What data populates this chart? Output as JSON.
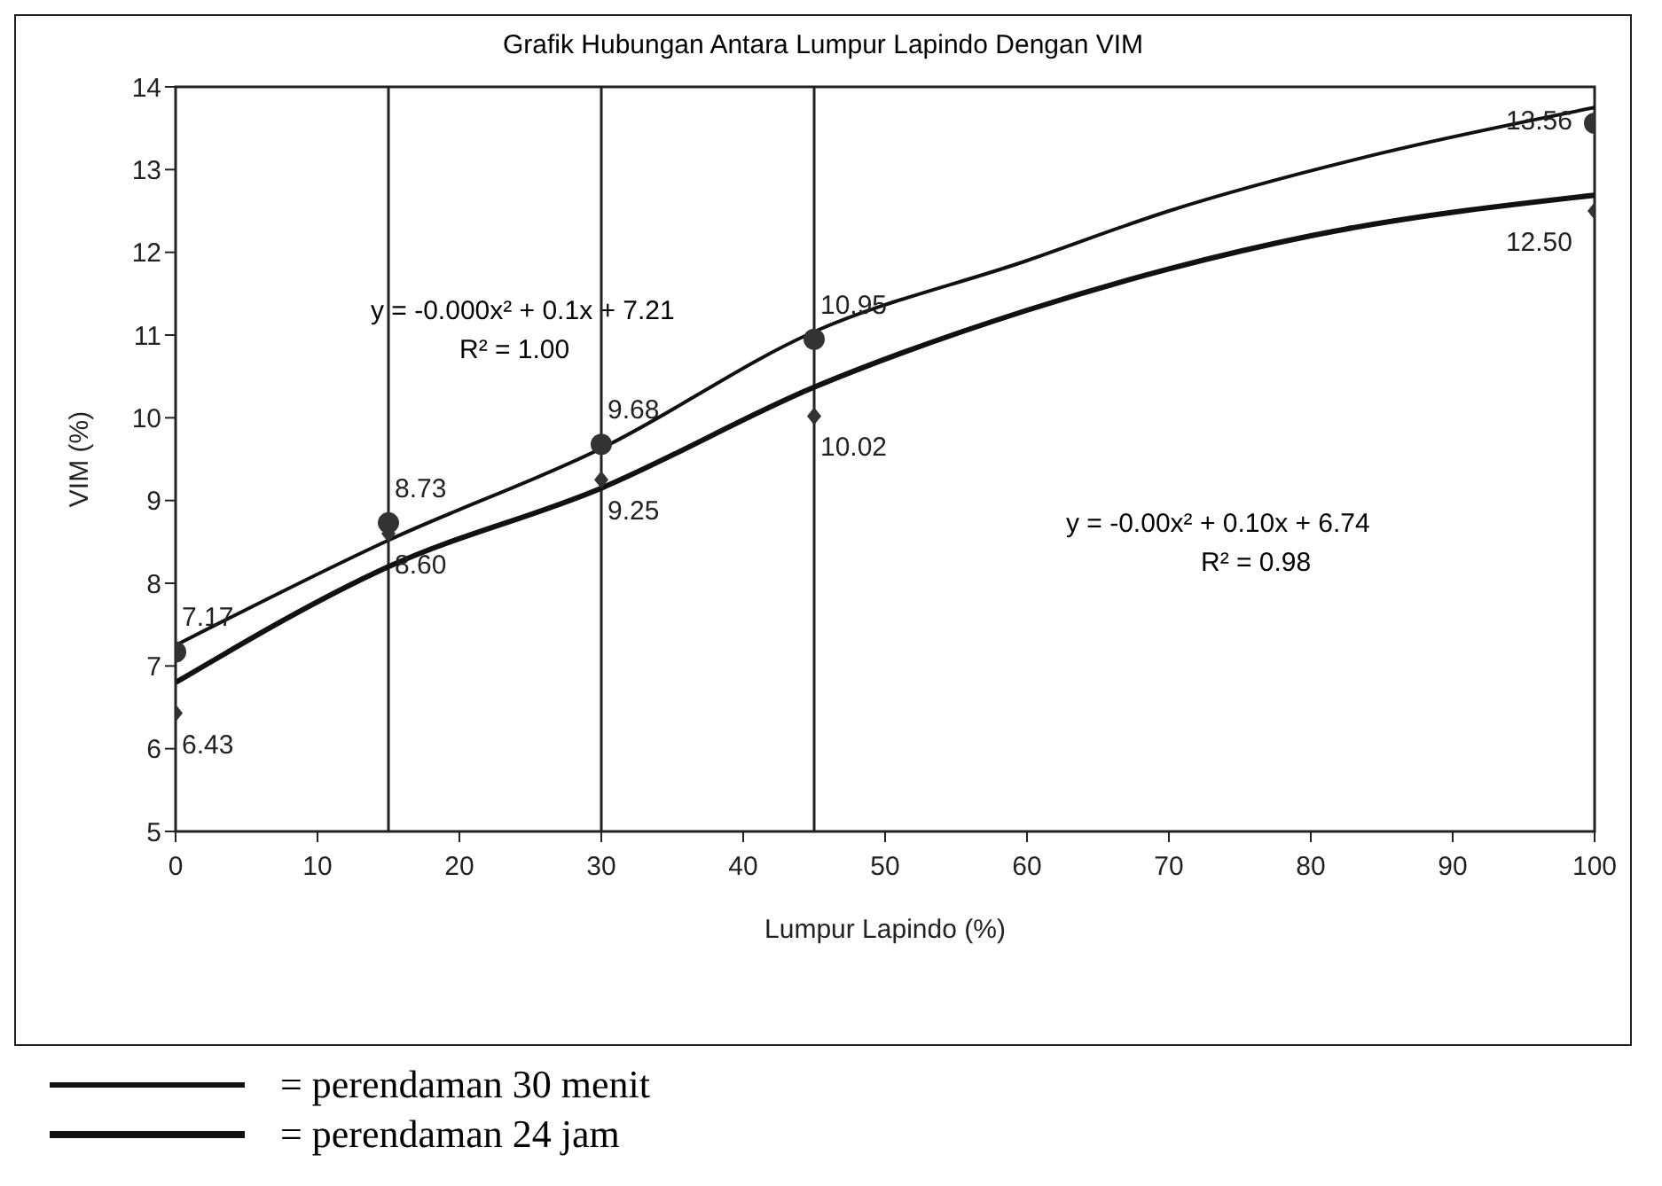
{
  "chart_data": {
    "type": "scatter",
    "title": "Grafik Hubungan  Antara Lumpur Lapindo Dengan VIM",
    "xlabel": "Lumpur Lapindo (%)",
    "ylabel": "VIM (%)",
    "xlim": [
      0,
      100
    ],
    "xticks": [
      0,
      10,
      20,
      30,
      40,
      50,
      60,
      70,
      80,
      90,
      100
    ],
    "ylim": [
      5,
      14
    ],
    "yticks": [
      5,
      6,
      7,
      8,
      9,
      10,
      11,
      12,
      13,
      14
    ],
    "grid": false,
    "legend": "bottom",
    "series": [
      {
        "color": "#333333",
        "marker": "circle",
        "x": [
          0,
          15,
          30,
          45,
          100
        ],
        "values": [
          7.17,
          8.73,
          9.68,
          10.95,
          13.56
        ],
        "value_labels": [
          "7.17",
          "8.73",
          "9.68",
          "10.95",
          "13.56"
        ]
      },
      {
        "color": "#333333",
        "marker": "diamond",
        "x": [
          0,
          15,
          30,
          45,
          100
        ],
        "values": [
          6.43,
          8.6,
          9.25,
          10.02,
          12.5
        ],
        "value_labels": [
          "6.43",
          "8.60",
          "9.25",
          "10.02",
          "12.50"
        ]
      },
      {
        "type": "line",
        "name": "= perendaman 30 menit",
        "color": "#111111",
        "x": [
          0,
          15,
          30,
          45,
          60,
          70,
          85,
          100
        ],
        "values": [
          7.25,
          8.52,
          9.63,
          11.04,
          11.9,
          12.5,
          13.2,
          13.75
        ]
      },
      {
        "type": "line",
        "name": "= perendaman 24 jam",
        "color": "#111111",
        "x": [
          0,
          15,
          30,
          45,
          60,
          70,
          80,
          100
        ],
        "values": [
          6.8,
          8.2,
          9.15,
          10.37,
          11.3,
          11.8,
          12.2,
          12.69
        ]
      }
    ],
    "ref_lines": [
      {
        "axis": "x",
        "value": 15,
        "color": "#222222"
      },
      {
        "axis": "x",
        "value": 30,
        "color": "#222222"
      },
      {
        "axis": "x",
        "value": 45,
        "color": "#222222"
      }
    ],
    "annotations": [
      "y = -0.000x² + 0.1x + 7.21",
      "R² = 1.00",
      "y = -0.00x² + 0.10x + 6.74",
      "R² = 0.98"
    ]
  }
}
